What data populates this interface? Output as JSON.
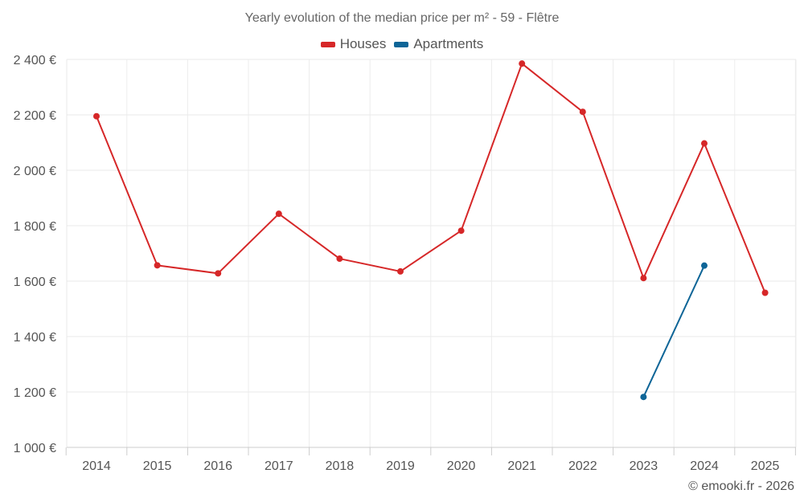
{
  "chart_data": {
    "type": "line",
    "title": "Yearly evolution of the median price per m² - 59 - Flêtre",
    "categories": [
      "2014",
      "2015",
      "2016",
      "2017",
      "2018",
      "2019",
      "2020",
      "2021",
      "2022",
      "2023",
      "2024",
      "2025"
    ],
    "y_tick_labels": [
      "1 000 €",
      "1 200 €",
      "1 400 €",
      "1 600 €",
      "1 800 €",
      "2 000 €",
      "2 200 €",
      "2 400 €"
    ],
    "y_ticks": [
      1000,
      1200,
      1400,
      1600,
      1800,
      2000,
      2200,
      2400
    ],
    "ylim": [
      1000,
      2400
    ],
    "grid": true,
    "legend_position": "top-center",
    "series": [
      {
        "name": "Houses",
        "color": "#d62728",
        "values": [
          2195,
          1657,
          1628,
          1843,
          1681,
          1635,
          1782,
          2385,
          2211,
          1611,
          2097,
          1558
        ]
      },
      {
        "name": "Apartments",
        "color": "#0e6597",
        "values": [
          null,
          null,
          null,
          null,
          null,
          null,
          null,
          null,
          null,
          1182,
          1656,
          null
        ]
      }
    ]
  },
  "credit": "© emooki.fr - 2026"
}
